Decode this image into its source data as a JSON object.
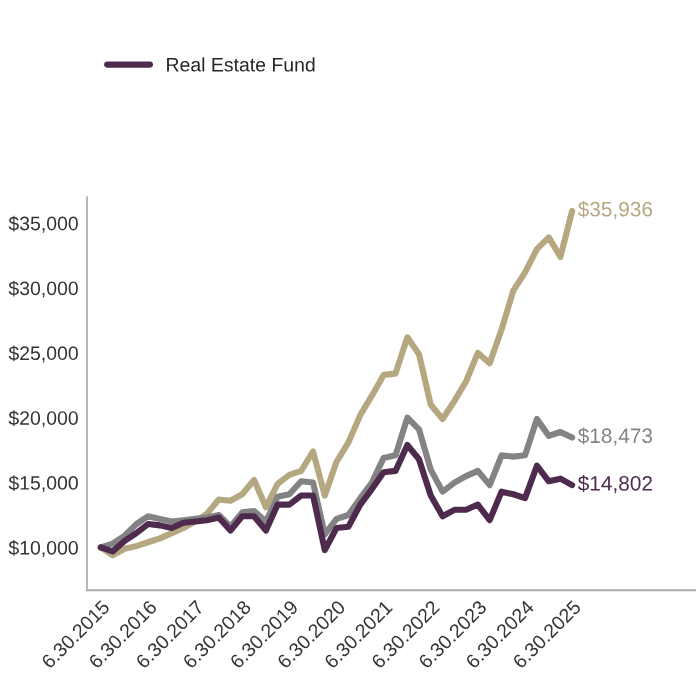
{
  "chart_data": {
    "type": "line",
    "x": [
      "2015-06-30",
      "2015-09-30",
      "2015-12-31",
      "2016-03-31",
      "2016-06-30",
      "2016-09-30",
      "2016-12-31",
      "2017-03-31",
      "2017-06-30",
      "2017-09-30",
      "2017-12-31",
      "2018-03-31",
      "2018-06-30",
      "2018-09-30",
      "2018-12-31",
      "2019-03-31",
      "2019-06-30",
      "2019-09-30",
      "2019-12-31",
      "2020-03-31",
      "2020-06-30",
      "2020-09-30",
      "2020-12-31",
      "2021-03-31",
      "2021-06-30",
      "2021-09-30",
      "2021-12-31",
      "2022-03-31",
      "2022-06-30",
      "2022-09-30",
      "2022-12-31",
      "2023-03-31",
      "2023-06-30",
      "2023-09-30",
      "2023-12-31",
      "2024-03-31",
      "2024-06-30",
      "2024-09-30",
      "2024-12-31",
      "2025-03-31",
      "2025-06-30"
    ],
    "series": [
      {
        "name": "Real Estate Fund",
        "color": "#4e2a4d",
        "values": [
          10000,
          9700,
          10500,
          11100,
          11800,
          11700,
          11500,
          11900,
          12000,
          12100,
          12300,
          11300,
          12400,
          12400,
          11300,
          13300,
          13300,
          14000,
          14000,
          9800,
          11500,
          11600,
          13300,
          14500,
          15800,
          15900,
          17900,
          16800,
          14000,
          12400,
          12900,
          12900,
          13300,
          12100,
          14300,
          14100,
          13800,
          16300,
          15100,
          15300,
          14802
        ],
        "value_labels": [
          null,
          null,
          null,
          null,
          null,
          null,
          null,
          null,
          null,
          null,
          null,
          null,
          null,
          null,
          null,
          null,
          null,
          null,
          null,
          null,
          null,
          null,
          null,
          null,
          null,
          null,
          null,
          null,
          null,
          null,
          null,
          null,
          null,
          null,
          null,
          null,
          null,
          null,
          null,
          null,
          "$14,802"
        ]
      },
      {
        "color": "#b5a77f",
        "values": [
          10000,
          9400,
          9900,
          10100,
          10400,
          10700,
          11100,
          11500,
          12000,
          12600,
          13700,
          13600,
          14100,
          15200,
          13100,
          14900,
          15600,
          15900,
          17400,
          14000,
          16600,
          18100,
          20200,
          21700,
          23300,
          23400,
          26200,
          24900,
          21000,
          19900,
          21300,
          22800,
          25000,
          24200,
          26800,
          29800,
          31200,
          33000,
          33900,
          32400,
          35936
        ],
        "value_labels": [
          null,
          null,
          null,
          null,
          null,
          null,
          null,
          null,
          null,
          null,
          null,
          null,
          null,
          null,
          null,
          null,
          null,
          null,
          null,
          null,
          null,
          null,
          null,
          null,
          null,
          null,
          null,
          null,
          null,
          null,
          null,
          null,
          null,
          null,
          null,
          null,
          null,
          null,
          null,
          null,
          "$35,936"
        ]
      },
      {
        "color": "#838386",
        "values": [
          10000,
          10300,
          10900,
          11800,
          12400,
          12200,
          12000,
          12100,
          12200,
          12300,
          12500,
          11600,
          12700,
          12800,
          12000,
          13900,
          14100,
          15100,
          15000,
          11000,
          12200,
          12500,
          13800,
          15000,
          16900,
          17100,
          20000,
          19100,
          16000,
          14300,
          15000,
          15500,
          15900,
          14800,
          17100,
          17000,
          17100,
          19900,
          18600,
          18900,
          18473
        ],
        "value_labels": [
          null,
          null,
          null,
          null,
          null,
          null,
          null,
          null,
          null,
          null,
          null,
          null,
          null,
          null,
          null,
          null,
          null,
          null,
          null,
          null,
          null,
          null,
          null,
          null,
          null,
          null,
          null,
          null,
          null,
          null,
          null,
          null,
          null,
          null,
          null,
          null,
          null,
          null,
          null,
          null,
          "$18,473"
        ]
      }
    ],
    "xlim": [
      "2015-03-15",
      "2028-02-15"
    ],
    "xticks": [
      {
        "value": "2015-06-30",
        "label": "6.30.2015"
      },
      {
        "value": "2016-06-30",
        "label": "6.30.2016"
      },
      {
        "value": "2017-06-30",
        "label": "6.30.2017"
      },
      {
        "value": "2018-06-30",
        "label": "6.30.2018"
      },
      {
        "value": "2019-06-30",
        "label": "6.30.2019"
      },
      {
        "value": "2020-06-30",
        "label": "6.30.2020"
      },
      {
        "value": "2021-06-30",
        "label": "6.30.2021"
      },
      {
        "value": "2022-06-30",
        "label": "6.30.2022"
      },
      {
        "value": "2023-06-30",
        "label": "6.30.2023"
      },
      {
        "value": "2024-06-30",
        "label": "6.30.2024"
      },
      {
        "value": "2025-06-30",
        "label": "6.30.2025"
      }
    ],
    "ylim": [
      6700,
      37000
    ],
    "yticks": [
      {
        "value": 10000,
        "label": "$10,000"
      },
      {
        "value": 15000,
        "label": "$15,000"
      },
      {
        "value": 20000,
        "label": "$20,000"
      },
      {
        "value": 25000,
        "label": "$25,000"
      },
      {
        "value": 30000,
        "label": "$30,000"
      },
      {
        "value": 35000,
        "label": "$35,000"
      }
    ],
    "grid": false,
    "legend": "top left",
    "marker": "none",
    "line_style": "solid"
  }
}
